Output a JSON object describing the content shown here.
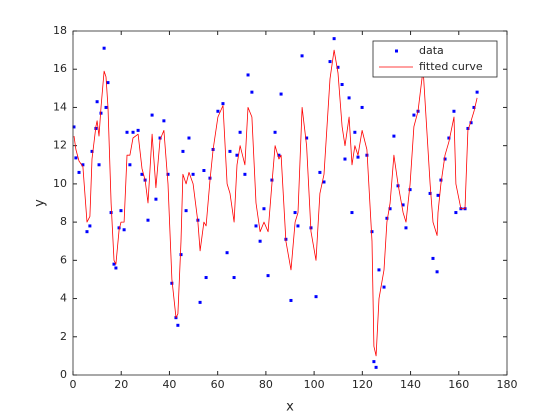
{
  "chart_data": {
    "type": "scatter",
    "xlabel": "x",
    "ylabel": "y",
    "xlim": [
      0,
      180
    ],
    "ylim": [
      0,
      18
    ],
    "xticks": [
      0,
      20,
      40,
      60,
      80,
      100,
      120,
      140,
      160,
      180
    ],
    "yticks": [
      0,
      2,
      4,
      6,
      8,
      10,
      12,
      14,
      16,
      18
    ],
    "legend": "northeast",
    "series": [
      {
        "name": "data",
        "type": "scatter",
        "color": "#0000ff",
        "x": [
          0.4,
          1.2,
          2.5,
          4.1,
          5.8,
          7,
          7.9,
          9.5,
          10,
          10.8,
          11.6,
          12.9,
          13.7,
          14.5,
          15.8,
          17,
          17.8,
          19.1,
          19.9,
          21.2,
          22.4,
          23.6,
          24.9,
          27,
          28.6,
          29.9,
          31.1,
          32.8,
          34.4,
          36.1,
          37.7,
          39.4,
          41,
          42.7,
          43.5,
          44.8,
          45.6,
          46.9,
          48.1,
          49.8,
          51.8,
          52.7,
          54.3,
          55.2,
          56.8,
          58.1,
          60.1,
          62.2,
          63.9,
          65.1,
          66.8,
          68,
          69.3,
          71.3,
          72.6,
          74.2,
          75.9,
          77.6,
          79.2,
          80.9,
          82.5,
          83.8,
          85.4,
          86.3,
          88.3,
          90.4,
          92.1,
          93.3,
          95,
          96.9,
          98.7,
          100.8,
          102.4,
          104.1,
          106.6,
          108.3,
          109.9,
          111.6,
          112.8,
          114.5,
          115.7,
          116.9,
          118.2,
          119.9,
          121.9,
          124,
          124.8,
          125.7,
          126.9,
          129,
          130.2,
          131.5,
          133.1,
          134.8,
          136.9,
          138.1,
          139.8,
          141.4,
          143.1,
          145.2,
          148.1,
          149.3,
          151,
          151.4,
          152.6,
          154.3,
          155.9,
          158,
          158.8,
          160.9,
          162.6,
          163.8,
          165.1,
          166.3,
          167.6
        ],
        "values": [
          12.98,
          11.36,
          10.6,
          11.0,
          7.5,
          7.8,
          11.7,
          12.9,
          14.3,
          11.0,
          13.7,
          17.1,
          14.0,
          15.3,
          8.5,
          5.8,
          5.6,
          7.7,
          8.6,
          7.6,
          12.7,
          11.0,
          12.7,
          12.8,
          10.5,
          10.2,
          8.1,
          13.6,
          9.2,
          12.4,
          13.3,
          10.5,
          4.8,
          3.0,
          2.6,
          6.3,
          11.7,
          8.6,
          12.4,
          10.5,
          8.1,
          3.8,
          10.7,
          5.1,
          10.3,
          11.8,
          13.8,
          14.2,
          6.4,
          11.7,
          5.1,
          11.5,
          12.7,
          10.5,
          15.7,
          14.8,
          7.8,
          7.0,
          8.7,
          5.2,
          10.2,
          12.7,
          11.5,
          14.7,
          7.1,
          3.9,
          8.5,
          7.8,
          16.7,
          12.4,
          7.7,
          4.1,
          10.6,
          10.1,
          16.4,
          17.6,
          16.1,
          15.2,
          11.3,
          14.5,
          8.5,
          12.7,
          11.4,
          14.0,
          11.5,
          7.5,
          0.7,
          0.4,
          5.5,
          4.6,
          8.2,
          8.7,
          12.5,
          9.9,
          8.9,
          7.7,
          9.7,
          13.6,
          13.8,
          17.0,
          9.5,
          6.1,
          5.4,
          9.4,
          10.2,
          11.3,
          12.4,
          13.8,
          8.5,
          8.7,
          8.7,
          12.9,
          13.2,
          14.0,
          14.8
        ]
      },
      {
        "name": "fitted curve",
        "type": "line",
        "color": "#ff0000",
        "x": [
          0.4,
          1.2,
          2.5,
          4.1,
          5.8,
          7,
          7.9,
          9.5,
          10,
          10.8,
          11.6,
          12.9,
          13.7,
          14.5,
          15.8,
          17,
          17.8,
          19.1,
          19.9,
          21.2,
          22.4,
          23.6,
          24.9,
          27,
          28.6,
          29.9,
          31.1,
          32.8,
          34.4,
          36.1,
          37.7,
          39.4,
          41,
          42.7,
          43.5,
          44.8,
          45.6,
          46.9,
          48.1,
          49.8,
          51.8,
          52.7,
          54.3,
          55.2,
          56.8,
          58.1,
          60.1,
          62.2,
          63.9,
          65.1,
          66.8,
          68,
          69.3,
          71.3,
          72.6,
          74.2,
          75.9,
          77.6,
          79.2,
          80.9,
          82.5,
          83.8,
          85.4,
          86.3,
          88.3,
          90.4,
          92.1,
          93.3,
          95,
          96.9,
          98.7,
          100.8,
          102.4,
          104.1,
          106.6,
          108.3,
          109.9,
          111.6,
          112.8,
          114.5,
          115.7,
          116.9,
          118.2,
          119.9,
          121.9,
          124,
          124.8,
          125.7,
          126.9,
          129,
          130.2,
          131.5,
          133.1,
          134.8,
          136.9,
          138.1,
          139.8,
          141.4,
          143.1,
          145.2,
          148.1,
          149.3,
          151,
          151.4,
          152.6,
          154.3,
          155.9,
          158,
          158.8,
          160.9,
          162.6,
          163.8,
          165.1,
          166.3,
          167.6
        ],
        "values": [
          12.5,
          11.8,
          11.2,
          10.9,
          8.0,
          8.3,
          11.3,
          13.0,
          13.3,
          12.5,
          14.0,
          15.9,
          15.6,
          14.0,
          9.0,
          6.0,
          5.8,
          7.6,
          8.0,
          8.0,
          11.5,
          11.5,
          12.4,
          12.6,
          10.8,
          10.2,
          9.0,
          12.6,
          9.8,
          12.3,
          12.8,
          10.0,
          5.0,
          3.0,
          3.2,
          7.0,
          10.5,
          10.0,
          10.6,
          10.0,
          8.0,
          6.5,
          8.0,
          7.8,
          10.2,
          11.8,
          13.5,
          14.1,
          10.0,
          9.5,
          8.0,
          11.0,
          12.0,
          11.0,
          14.0,
          13.5,
          9.0,
          7.5,
          8.0,
          7.5,
          10.0,
          12.0,
          11.3,
          11.5,
          7.0,
          5.5,
          8.0,
          8.5,
          14.0,
          12.0,
          7.5,
          6.0,
          9.5,
          10.5,
          15.5,
          17.0,
          15.8,
          13.0,
          12.0,
          13.5,
          11.0,
          12.0,
          11.5,
          12.8,
          11.8,
          7.0,
          1.5,
          1.0,
          4.0,
          5.5,
          8.0,
          9.0,
          11.5,
          10.0,
          8.5,
          8.0,
          10.0,
          13.0,
          13.8,
          16.0,
          10.0,
          8.0,
          7.3,
          8.5,
          10.0,
          11.5,
          12.2,
          13.5,
          10.0,
          8.7,
          8.7,
          12.8,
          13.3,
          13.8,
          14.5
        ]
      }
    ]
  }
}
